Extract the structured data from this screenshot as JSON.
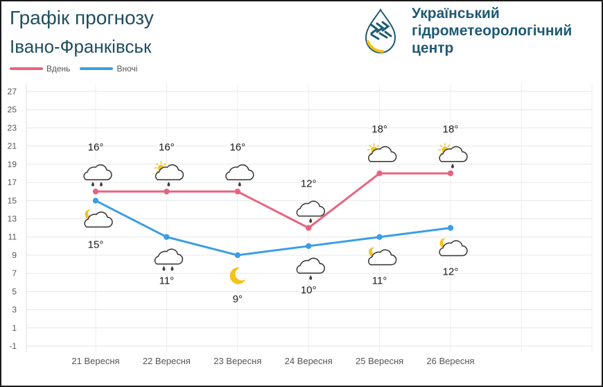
{
  "header": {
    "title": "Графік прогнозу",
    "city": "Івано-Франківськ"
  },
  "organization": {
    "line1": "Український",
    "line2": "гідрометеорологічний",
    "line3": "центр",
    "logo_icon": "water-drop-logo-icon"
  },
  "legend": {
    "day_label": "Вдень",
    "night_label": "Вночі",
    "day_color": "#e8637f",
    "night_color": "#3a9ee4"
  },
  "chart_data": {
    "type": "line",
    "categories": [
      "21 Вересня",
      "22 Вересня",
      "23 Вересня",
      "24 Вересня",
      "25 Вересня",
      "26 Вересня"
    ],
    "series": [
      {
        "name": "Вдень",
        "color": "#e8637f",
        "values": [
          16,
          16,
          16,
          12,
          18,
          18
        ],
        "labels": [
          "16°",
          "16°",
          "16°",
          "12°",
          "18°",
          "18°"
        ],
        "icons": [
          "cloud-rain-icon",
          "partly-cloudy-rain-icon",
          "cloud-light-rain-icon",
          "cloud-light-rain-icon",
          "partly-cloudy-icon",
          "partly-cloudy-rain-icon"
        ]
      },
      {
        "name": "Вночі",
        "color": "#3a9ee4",
        "values": [
          15,
          11,
          9,
          10,
          11,
          12
        ],
        "labels": [
          "15°",
          "11°",
          "9°",
          "10°",
          "11°",
          "12°"
        ],
        "icons": [
          "night-cloudy-icon",
          "cloud-rain-icon",
          "moon-icon",
          "cloud-light-rain-icon",
          "night-cloudy-icon",
          "night-cloudy-icon"
        ]
      }
    ],
    "ylim": [
      -1,
      27
    ],
    "yticks": [
      -1,
      1,
      3,
      5,
      7,
      9,
      11,
      13,
      15,
      17,
      19,
      21,
      23,
      25,
      27
    ],
    "grid": true
  }
}
